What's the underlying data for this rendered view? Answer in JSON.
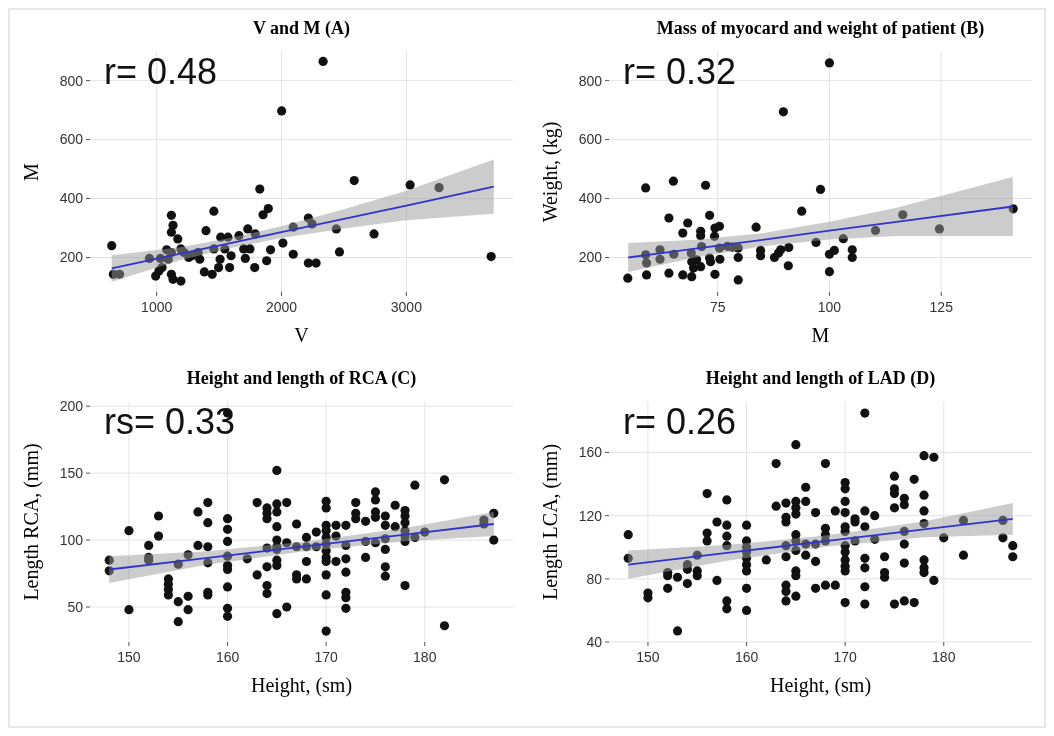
{
  "chart_data": [
    {
      "type": "scatter",
      "title": "V and M (A)",
      "xlabel": "V",
      "ylabel": "M",
      "annotations": [
        "r= 0.48"
      ],
      "xlim": [
        466,
        3854
      ],
      "ylim": [
        83,
        897
      ],
      "xticks": [
        1000,
        2000,
        3000
      ],
      "yticks": [
        200,
        400,
        600,
        800
      ],
      "grid": true,
      "series": [
        {
          "marker": "circle",
          "color": "#111111",
          "x": [
            640,
            653,
            703,
            942,
            992,
            1018,
            1030,
            1043,
            1080,
            1093,
            1118,
            1131,
            1118,
            1118,
            1118,
            1131,
            1194,
            1169,
            1194,
            1219,
            1257,
            1282,
            1332,
            1345,
            1395,
            1382,
            1445,
            1458,
            1458,
            1496,
            1508,
            1513,
            1546,
            1571,
            1584,
            1596,
            1659,
            1697,
            1710,
            1730,
            1747,
            1790,
            1785,
            1826,
            1852,
            1894,
            1881,
            1912,
            2001,
            2011,
            2094,
            2094,
            2215,
            2215,
            2245,
            2277,
            2333,
            2439,
            2464,
            2582,
            2741,
            3030,
            3262,
            3679
          ],
          "values": [
            240,
            143,
            143,
            197,
            137,
            154,
            197,
            166,
            226,
            194,
            343,
            309,
            286,
            217,
            143,
            126,
            120,
            263,
            229,
            217,
            200,
            206,
            217,
            194,
            291,
            151,
            143,
            357,
            229,
            166,
            194,
            269,
            229,
            269,
            166,
            206,
            274,
            229,
            197,
            297,
            229,
            280,
            166,
            432,
            345,
            366,
            189,
            226,
            697,
            249,
            303,
            211,
            334,
            181,
            314,
            181,
            865,
            297,
            219,
            461,
            280,
            446,
            437,
            203
          ]
        },
        {
          "type": "line",
          "color": "#3333cc",
          "x": [
            640,
            1200,
            1600,
            2000,
            2500,
            3000,
            3700
          ],
          "values": [
            163,
            214,
            250,
            286,
            331,
            376,
            440
          ],
          "lower": [
            118,
            192,
            233,
            266,
            298,
            326,
            348
          ],
          "upper": [
            208,
            236,
            267,
            306,
            364,
            426,
            532
          ]
        }
      ]
    },
    {
      "type": "scatter",
      "title": "Mass of myocard and weight of patient (B)",
      "xlabel": "M",
      "ylabel": "Weight, (kg)",
      "annotations": [
        "r= 0.32"
      ],
      "xlim": [
        50.7,
        145.3
      ],
      "ylim": [
        83,
        897
      ],
      "xticks": [
        75,
        100,
        125
      ],
      "yticks": [
        200,
        400,
        600,
        800
      ],
      "grid": true,
      "series": [
        {
          "marker": "circle",
          "color": "#111111",
          "x": [
            54.9,
            58.9,
            58.9,
            59.1,
            59.1,
            62.1,
            62.1,
            64.1,
            64.1,
            65.1,
            65.2,
            67.2,
            67.2,
            68.3,
            69.1,
            69.2,
            69.2,
            69.6,
            70.3,
            71.2,
            71.2,
            71.2,
            71.4,
            72.3,
            73.2,
            73.2,
            73.4,
            74.3,
            74.4,
            74.4,
            75.4,
            75.4,
            75.5,
            77.2,
            78.3,
            79.6,
            79.6,
            79.6,
            83.6,
            84.6,
            84.6,
            87.7,
            88.6,
            89.1,
            89.7,
            90.8,
            90.9,
            93.8,
            97,
            98,
            100,
            100,
            100,
            101.1,
            103.1,
            105.1,
            105.1,
            110.3,
            116.4,
            124.6,
            141.1
          ],
          "values": [
            130,
            436,
            209,
            181,
            141,
            226,
            194,
            334,
            147,
            459,
            211,
            141,
            283,
            317,
            215,
            186,
            135,
            164,
            192,
            289,
            274,
            169,
            237,
            445,
            343,
            198,
            186,
            272,
            300,
            143,
            306,
            232,
            194,
            238,
            235,
            232,
            200,
            124,
            303,
            224,
            206,
            200,
            215,
            226,
            694,
            172,
            234,
            357,
            251,
            431,
            860,
            152,
            211,
            224,
            264,
            226,
            200,
            292,
            345,
            297,
            365
          ]
        },
        {
          "type": "line",
          "color": "#3333cc",
          "x": [
            55,
            70,
            85,
            100,
            115,
            141
          ],
          "values": [
            200,
            230,
            260,
            291,
            321,
            373
          ],
          "lower": [
            151,
            200,
            238,
            261,
            273,
            273
          ],
          "upper": [
            249,
            260,
            282,
            321,
            369,
            473
          ]
        }
      ]
    },
    {
      "type": "scatter",
      "title": "Height and length of RCA (C)",
      "xlabel": "Height, (sm)",
      "ylabel": "Length RCA, (mm)",
      "annotations": [
        "rs= 0.33"
      ],
      "xlim": [
        146.05,
        188.95
      ],
      "ylim": [
        23.85,
        203.15
      ],
      "xticks": [
        150,
        160,
        170,
        180
      ],
      "yticks": [
        50,
        100,
        150,
        200
      ],
      "grid": true,
      "series": [
        {
          "marker": "circle",
          "color": "#111111",
          "x": [
            148,
            148,
            150,
            150,
            152,
            152,
            152,
            153,
            153,
            154,
            154,
            154,
            154,
            155,
            155,
            155,
            156,
            156,
            156,
            157,
            157,
            158,
            158,
            158,
            158,
            158,
            158,
            160,
            160,
            160,
            160,
            160,
            160,
            160,
            160,
            160,
            160,
            162,
            163,
            163,
            164,
            164,
            164,
            164,
            164,
            164,
            164,
            165,
            165,
            165,
            165,
            165,
            165,
            165,
            165,
            165,
            165,
            166,
            166,
            166,
            167,
            167,
            167,
            167,
            168,
            168,
            168,
            168,
            169,
            169,
            170,
            170,
            170,
            170,
            170,
            170,
            170,
            170,
            170,
            170,
            170,
            170,
            171,
            171,
            171,
            172,
            172,
            172,
            172,
            172,
            172,
            172,
            173,
            173,
            173,
            174,
            174,
            174,
            175,
            175,
            175,
            175,
            175,
            176,
            176,
            176,
            176,
            176,
            176,
            177,
            177,
            178,
            178,
            178,
            178,
            178,
            178,
            178,
            179,
            179,
            180,
            182,
            182,
            186,
            186,
            187,
            187
          ],
          "values": [
            85,
            77,
            107,
            48,
            96,
            87,
            85,
            118,
            103,
            71,
            67,
            63,
            59,
            82,
            54,
            39,
            89,
            58,
            48,
            121,
            96,
            128,
            113,
            95,
            83,
            61,
            59,
            195,
            116,
            108,
            99,
            88,
            81,
            78,
            65,
            49,
            43,
            86,
            128,
            74,
            124,
            120,
            116,
            94,
            80,
            66,
            60,
            152,
            127,
            121,
            110,
            100,
            95,
            93,
            85,
            81,
            45,
            128,
            98,
            50,
            112,
            95,
            74,
            71,
            102,
            95,
            84,
            71,
            106,
            95,
            129,
            124,
            111,
            107,
            102,
            97,
            92,
            87,
            84,
            74,
            59,
            32,
            111,
            103,
            84,
            111,
            96,
            86,
            76,
            61,
            57,
            49,
            128,
            120,
            116,
            114,
            99,
            87,
            136,
            130,
            121,
            117,
            98,
            118,
            111,
            101,
            93,
            80,
            73,
            126,
            110,
            122,
            118,
            113,
            107,
            103,
            99,
            66,
            141,
            102,
            106,
            145,
            36,
            115,
            112,
            120,
            100
          ]
        },
        {
          "type": "line",
          "color": "#3333cc",
          "x": [
            148,
            158,
            168,
            178,
            187
          ],
          "values": [
            78,
            86.7,
            95.4,
            104.1,
            112
          ],
          "lower": [
            68,
            81.7,
            91.9,
            99.1,
            103
          ],
          "upper": [
            88,
            91.7,
            98.9,
            109.1,
            121
          ]
        }
      ]
    },
    {
      "type": "scatter",
      "title": "Height and length of LAD (D)",
      "xlabel": "Height, (sm)",
      "ylabel": "Length LCA, (mm)",
      "annotations": [
        "r= 0.26"
      ],
      "xlim": [
        146.05,
        188.95
      ],
      "ylim": [
        40,
        192
      ],
      "xticks": [
        150,
        160,
        170,
        180
      ],
      "yticks": [
        40,
        80,
        120,
        160
      ],
      "grid": true,
      "series": [
        {
          "marker": "circle",
          "color": "#111111",
          "x": [
            148,
            148,
            150,
            150,
            152,
            152,
            152,
            153,
            153,
            154,
            154,
            154,
            155,
            155,
            155,
            156,
            156,
            156,
            157,
            157,
            158,
            158,
            158,
            158,
            158,
            158,
            160,
            160,
            160,
            160,
            160,
            160,
            160,
            160,
            160,
            162,
            163,
            163,
            164,
            164,
            164,
            164,
            164,
            164,
            164,
            164,
            165,
            165,
            165,
            165,
            165,
            165,
            165,
            165,
            165,
            165,
            166,
            166,
            166,
            166,
            167,
            167,
            167,
            167,
            168,
            168,
            168,
            168,
            168,
            169,
            169,
            170,
            170,
            170,
            170,
            170,
            170,
            170,
            170,
            170,
            170,
            170,
            170,
            171,
            171,
            171,
            172,
            172,
            172,
            172,
            172,
            172,
            172,
            173,
            173,
            174,
            174,
            174,
            175,
            175,
            175,
            175,
            175,
            176,
            176,
            176,
            176,
            176,
            176,
            177,
            177,
            178,
            178,
            178,
            178,
            178,
            178,
            178,
            179,
            179,
            180,
            182,
            182,
            186,
            186,
            187,
            187
          ],
          "values": [
            108,
            93,
            71,
            68,
            84,
            82,
            74,
            81,
            47,
            89,
            86,
            77,
            95,
            85,
            82,
            134,
            109,
            104,
            116,
            79,
            130,
            114,
            107,
            101,
            66,
            61,
            114,
            104,
            100,
            97,
            93,
            89,
            85,
            74,
            60,
            92,
            153,
            126,
            128,
            119,
            116,
            101,
            94,
            76,
            72,
            66,
            165,
            129,
            125,
            121,
            108,
            104,
            98,
            85,
            82,
            69,
            138,
            129,
            102,
            95,
            122,
            102,
            91,
            74,
            153,
            112,
            108,
            104,
            76,
            123,
            76,
            141,
            137,
            129,
            122,
            113,
            110,
            101,
            97,
            92,
            88,
            85,
            65,
            118,
            116,
            104,
            185,
            123,
            113,
            93,
            87,
            75,
            64,
            120,
            105,
            94,
            84,
            81,
            145,
            137,
            134,
            125,
            64,
            131,
            127,
            110,
            102,
            90,
            66,
            143,
            65,
            158,
            133,
            123,
            115,
            92,
            87,
            84,
            157,
            79,
            106,
            117,
            95,
            117,
            106,
            101,
            94
          ]
        },
        {
          "type": "line",
          "color": "#3333cc",
          "x": [
            148,
            158,
            168,
            178,
            187
          ],
          "values": [
            89,
            96.4,
            103.9,
            111.3,
            118
          ],
          "lower": [
            80,
            91.4,
            100.4,
            106.3,
            108
          ],
          "upper": [
            98,
            101.4,
            107.4,
            116.3,
            128
          ]
        }
      ]
    }
  ]
}
